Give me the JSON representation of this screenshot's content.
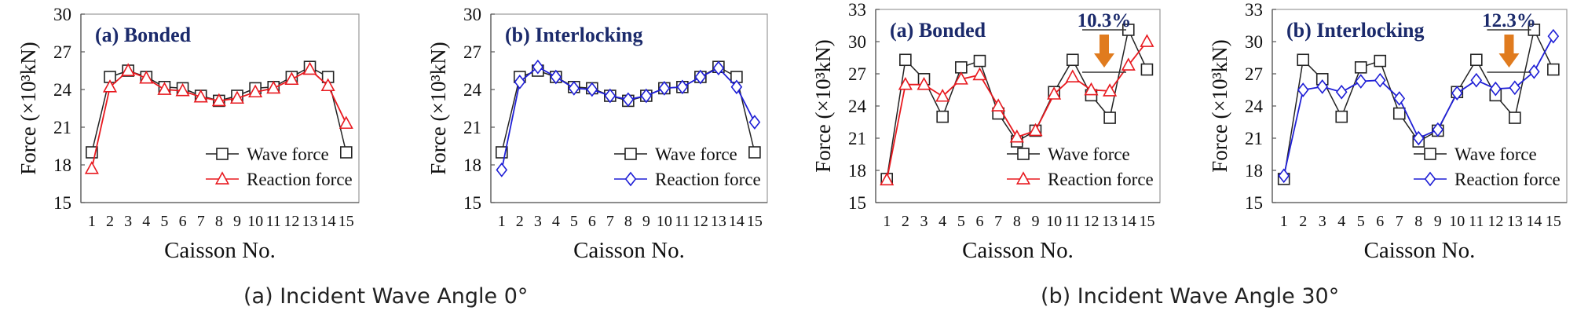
{
  "captions": [
    "(a) Incident Wave Angle 0°",
    "(b) Incident Wave Angle 30°"
  ],
  "colors": {
    "wave": "#222222",
    "reaction_red": "#e8191f",
    "reaction_blue": "#1f1fd6",
    "title": "#1b2a6b",
    "arrow": "#e07b1e"
  },
  "chart_data": [
    {
      "type": "line",
      "panel_label": "(a) Bonded",
      "xlabel": "Caisson No.",
      "ylabel": "Force (×10³kN)",
      "xticks": [
        "1",
        "2",
        "3",
        "4",
        "5",
        "6",
        "7",
        "8",
        "9",
        "10",
        "11",
        "12",
        "13",
        "14",
        "15"
      ],
      "ylim": [
        15,
        30
      ],
      "yticks": [
        15,
        18,
        21,
        24,
        27,
        30
      ],
      "legend_placement": "bottom-right",
      "series": [
        {
          "name": "Wave force",
          "marker": "square",
          "color": "#222222",
          "values": [
            19.0,
            25.0,
            25.5,
            25.0,
            24.2,
            24.1,
            23.5,
            23.1,
            23.5,
            24.1,
            24.2,
            25.0,
            25.8,
            25.0,
            19.0
          ]
        },
        {
          "name": "Reaction force",
          "marker": "triangle",
          "color": "#e8191f",
          "values": [
            17.7,
            24.2,
            25.5,
            24.9,
            24.0,
            23.9,
            23.4,
            23.1,
            23.3,
            23.8,
            24.1,
            24.8,
            25.6,
            24.3,
            21.3
          ]
        }
      ]
    },
    {
      "type": "line",
      "panel_label": "(b) Interlocking",
      "xlabel": "Caisson No.",
      "ylabel": "Force (×10³kN)",
      "xticks": [
        "1",
        "2",
        "3",
        "4",
        "5",
        "6",
        "7",
        "8",
        "9",
        "10",
        "11",
        "12",
        "13",
        "14",
        "15"
      ],
      "ylim": [
        15,
        30
      ],
      "yticks": [
        15,
        18,
        21,
        24,
        27,
        30
      ],
      "legend_placement": "bottom-right",
      "series": [
        {
          "name": "Wave force",
          "marker": "square",
          "color": "#222222",
          "values": [
            19.0,
            25.0,
            25.5,
            25.0,
            24.2,
            24.1,
            23.5,
            23.1,
            23.5,
            24.1,
            24.2,
            25.0,
            25.8,
            25.0,
            19.0
          ]
        },
        {
          "name": "Reaction force",
          "marker": "diamond",
          "color": "#1f1fd6",
          "values": [
            17.6,
            24.6,
            25.8,
            25.0,
            24.1,
            24.0,
            23.5,
            23.2,
            23.5,
            24.1,
            24.2,
            25.0,
            25.7,
            24.2,
            21.4
          ]
        }
      ]
    },
    {
      "type": "line",
      "panel_label": "(a) Bonded",
      "xlabel": "Caisson No.",
      "ylabel": "Force (×10³kN)",
      "xticks": [
        "1",
        "2",
        "3",
        "4",
        "5",
        "6",
        "7",
        "8",
        "9",
        "10",
        "11",
        "12",
        "13",
        "14",
        "15"
      ],
      "ylim": [
        15,
        33
      ],
      "yticks": [
        15,
        18,
        21,
        24,
        27,
        30,
        33
      ],
      "legend_placement": "bottom-right",
      "annotation": {
        "text": "10.3%",
        "at_caisson": 12.7
      },
      "series": [
        {
          "name": "Wave force",
          "marker": "square",
          "color": "#222222",
          "values": [
            17.2,
            28.3,
            26.5,
            23.0,
            27.6,
            28.2,
            23.3,
            20.7,
            21.7,
            25.3,
            28.3,
            25.0,
            22.9,
            31.1,
            27.4
          ]
        },
        {
          "name": "Reaction force",
          "marker": "triangle",
          "color": "#e8191f",
          "values": [
            17.1,
            26.0,
            26.0,
            24.9,
            26.5,
            26.9,
            24.0,
            21.1,
            21.7,
            25.1,
            26.7,
            25.5,
            25.4,
            27.8,
            30.0
          ]
        }
      ]
    },
    {
      "type": "line",
      "panel_label": "(b) Interlocking",
      "xlabel": "Caisson No.",
      "ylabel": "Force (×10³kN)",
      "xticks": [
        "1",
        "2",
        "3",
        "4",
        "5",
        "6",
        "7",
        "8",
        "9",
        "10",
        "11",
        "12",
        "13",
        "14",
        "15"
      ],
      "ylim": [
        15,
        33
      ],
      "yticks": [
        15,
        18,
        21,
        24,
        27,
        30,
        33
      ],
      "legend_placement": "bottom-right",
      "annotation": {
        "text": "12.3%",
        "at_caisson": 12.7
      },
      "series": [
        {
          "name": "Wave force",
          "marker": "square",
          "color": "#222222",
          "values": [
            17.2,
            28.3,
            26.5,
            23.0,
            27.6,
            28.2,
            23.3,
            20.7,
            21.7,
            25.3,
            28.3,
            25.0,
            22.9,
            31.1,
            27.4
          ]
        },
        {
          "name": "Reaction force",
          "marker": "diamond",
          "color": "#1f1fd6",
          "values": [
            17.5,
            25.5,
            25.8,
            25.3,
            26.3,
            26.4,
            24.7,
            21.0,
            21.8,
            25.2,
            26.4,
            25.6,
            25.7,
            27.2,
            30.5
          ]
        }
      ]
    }
  ]
}
